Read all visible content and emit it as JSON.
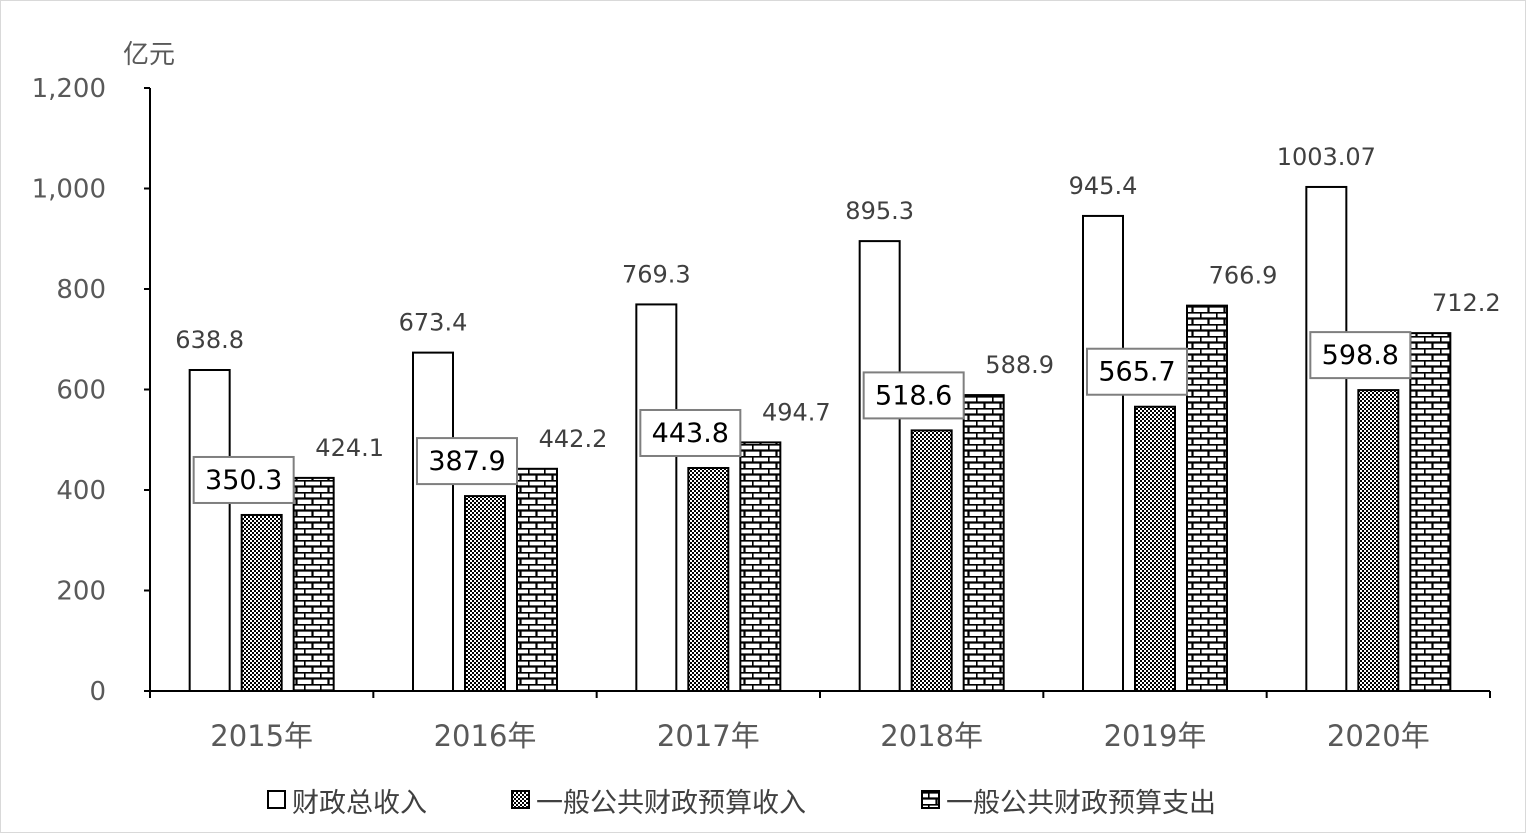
{
  "chart_data": {
    "type": "bar",
    "unit": "亿元",
    "categories": [
      "2015年",
      "2016年",
      "2017年",
      "2018年",
      "2019年",
      "2020年"
    ],
    "series": [
      {
        "name": "财政总收入",
        "pattern": "white",
        "values": [
          638.8,
          673.4,
          769.3,
          895.3,
          945.4,
          1003.07
        ],
        "labels": [
          "638.8",
          "673.4",
          "769.3",
          "895.3",
          "945.4",
          "1003.07"
        ]
      },
      {
        "name": "一般公共财政预算收入",
        "pattern": "checker",
        "values": [
          350.3,
          387.9,
          443.8,
          518.6,
          565.7,
          598.8
        ],
        "labels": [
          "350.3",
          "387.9",
          "443.8",
          "518.6",
          "565.7",
          "598.8"
        ]
      },
      {
        "name": "一般公共财政预算支出",
        "pattern": "brick",
        "values": [
          424.1,
          442.2,
          494.7,
          588.9,
          766.9,
          712.2
        ],
        "labels": [
          "424.1",
          "442.2",
          "494.7",
          "588.9",
          "766.9",
          "712.2"
        ]
      }
    ],
    "ylim": [
      0,
      1200
    ],
    "yticks": [
      0,
      200,
      400,
      600,
      800,
      1000,
      1200
    ],
    "ytick_labels": [
      "0",
      "200",
      "400",
      "600",
      "800",
      "1,000",
      "1,200"
    ],
    "grid": false,
    "legend": "bottom",
    "colors": {
      "axis": "#000000",
      "text": "#595959",
      "bar_stroke": "#000000",
      "fill": "#ffffff"
    }
  }
}
